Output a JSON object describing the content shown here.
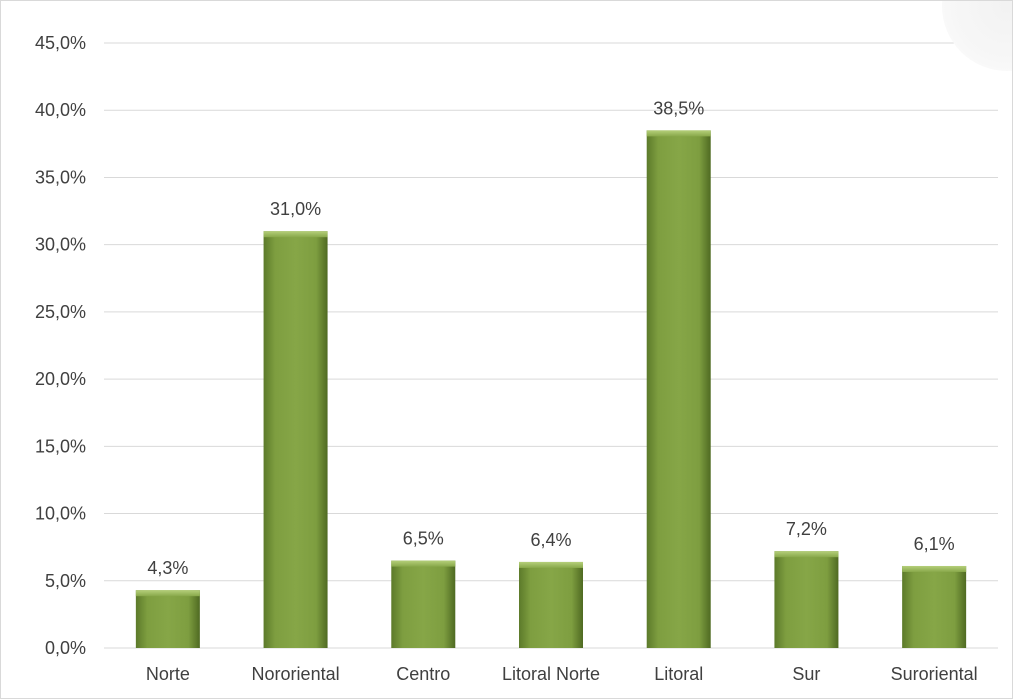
{
  "chart_data": {
    "type": "bar",
    "title": "",
    "xlabel": "",
    "ylabel": "",
    "categories": [
      "Norte",
      "Nororiental",
      "Centro",
      "Litoral Norte",
      "Litoral",
      "Sur",
      "Suroriental"
    ],
    "values": [
      4.3,
      31.0,
      6.5,
      6.4,
      38.5,
      7.2,
      6.1
    ],
    "data_labels": [
      "4,3%",
      "31,0%",
      "6,5%",
      "6,4%",
      "38,5%",
      "7,2%",
      "6,1%"
    ],
    "ylim": [
      0,
      45
    ],
    "y_ticks": [
      0,
      5,
      10,
      15,
      20,
      25,
      30,
      35,
      40,
      45
    ],
    "y_tick_labels": [
      "0,0%",
      "5,0%",
      "10,0%",
      "15,0%",
      "20,0%",
      "25,0%",
      "30,0%",
      "35,0%",
      "40,0%",
      "45,0%"
    ],
    "grid": true,
    "legend": "none",
    "colors": {
      "bar": "#77933c",
      "bar_light": "#8fb04a",
      "bar_dark": "#4f6228",
      "gridline": "#d9d9d9",
      "text": "#404040"
    }
  }
}
